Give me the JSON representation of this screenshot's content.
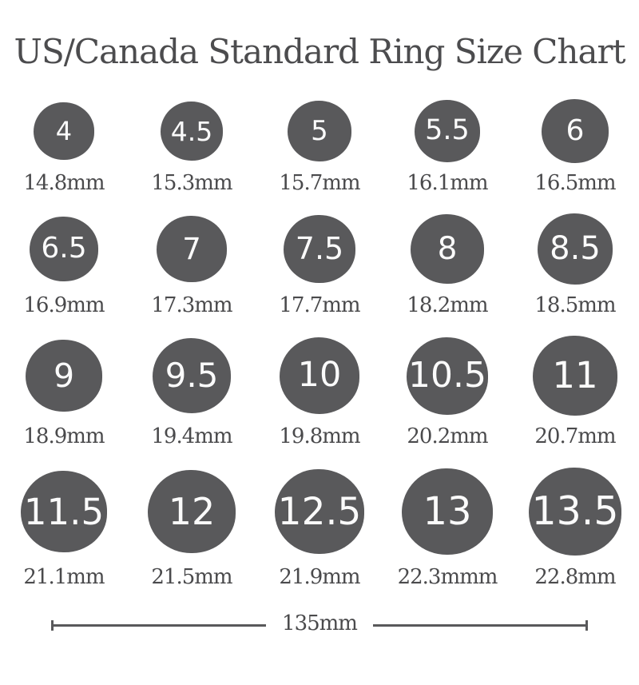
{
  "title": "US/Canada Standard Ring Size Chart",
  "colors": {
    "circle_fill": "#59595b",
    "circle_number": "#fbfbfb",
    "text": "#4a4a4c",
    "background": "#ffffff"
  },
  "chart_data": {
    "type": "table",
    "title": "US/Canada Standard Ring Size Chart",
    "columns": [
      "US/Canada Ring Size",
      "Inner Diameter"
    ],
    "layout": {
      "rows": 4,
      "cols": 5,
      "legend": "none",
      "grid": "off"
    },
    "sizes": [
      {
        "size": "4",
        "diameter_label": "14.8mm",
        "diameter_mm": 14.8
      },
      {
        "size": "4.5",
        "diameter_label": "15.3mm",
        "diameter_mm": 15.3
      },
      {
        "size": "5",
        "diameter_label": "15.7mm",
        "diameter_mm": 15.7
      },
      {
        "size": "5.5",
        "diameter_label": "16.1mm",
        "diameter_mm": 16.1
      },
      {
        "size": "6",
        "diameter_label": "16.5mm",
        "diameter_mm": 16.5
      },
      {
        "size": "6.5",
        "diameter_label": "16.9mm",
        "diameter_mm": 16.9
      },
      {
        "size": "7",
        "diameter_label": "17.3mm",
        "diameter_mm": 17.3
      },
      {
        "size": "7.5",
        "diameter_label": "17.7mm",
        "diameter_mm": 17.7
      },
      {
        "size": "8",
        "diameter_label": "18.2mm",
        "diameter_mm": 18.2
      },
      {
        "size": "8.5",
        "diameter_label": "18.5mm",
        "diameter_mm": 18.5
      },
      {
        "size": "9",
        "diameter_label": "18.9mm",
        "diameter_mm": 18.9
      },
      {
        "size": "9.5",
        "diameter_label": "19.4mm",
        "diameter_mm": 19.4
      },
      {
        "size": "10",
        "diameter_label": "19.8mm",
        "diameter_mm": 19.8
      },
      {
        "size": "10.5",
        "diameter_label": "20.2mm",
        "diameter_mm": 20.2
      },
      {
        "size": "11",
        "diameter_label": "20.7mm",
        "diameter_mm": 20.7
      },
      {
        "size": "11.5",
        "diameter_label": "21.1mm",
        "diameter_mm": 21.1
      },
      {
        "size": "12",
        "diameter_label": "21.5mm",
        "diameter_mm": 21.5
      },
      {
        "size": "12.5",
        "diameter_label": "21.9mm",
        "diameter_mm": 21.9
      },
      {
        "size": "13",
        "diameter_label": "22.3mmm",
        "diameter_mm": 22.3
      },
      {
        "size": "13.5",
        "diameter_label": "22.8mm",
        "diameter_mm": 22.8
      }
    ],
    "scale_bar_label": "135mm"
  },
  "ruler": {
    "label": "135mm"
  }
}
